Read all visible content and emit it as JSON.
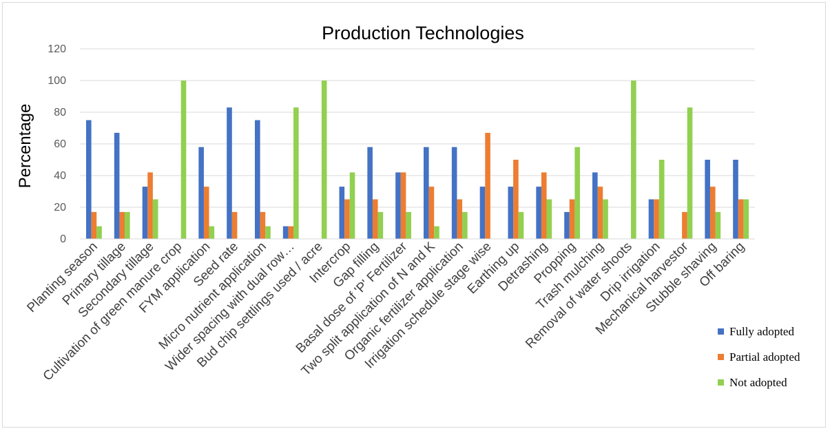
{
  "chart_data": {
    "type": "bar",
    "title": "Production Technologies",
    "xlabel": "",
    "ylabel": "Percentage",
    "ylim": [
      0,
      120
    ],
    "yticks": [
      0,
      20,
      40,
      60,
      80,
      100,
      120
    ],
    "grid": true,
    "legend_position": "right",
    "categories": [
      "Planting season",
      "Primary tillage",
      "Secondary tillage",
      "Cultivation of green manure crop",
      "FYM application",
      "Seed rate",
      "Micro nutrient application",
      "Wider spacing with dual row…",
      "Bud chip settlings used / acre",
      "Intercrop",
      "Gap filling",
      "Basal dose of 'P' Fertilizer",
      "Two split application of N and K",
      "Organic  fertilizer application",
      "Irrigation schedule stage wise",
      "Earthing up",
      "Detrashing",
      "Propping",
      "Trash mulching",
      "Removal of water shoots",
      "Drip irrigation",
      "Mechanical harvestor",
      "Stubble shaving",
      "Off baring"
    ],
    "series": [
      {
        "name": "Fully adopted",
        "color": "#4472c4",
        "values": [
          75,
          67,
          33,
          0,
          58,
          83,
          75,
          8,
          0,
          33,
          58,
          42,
          58,
          58,
          33,
          33,
          33,
          17,
          42,
          0,
          25,
          0,
          50,
          50
        ]
      },
      {
        "name": "Partial adopted",
        "color": "#ed7d31",
        "values": [
          17,
          17,
          42,
          0,
          33,
          17,
          17,
          8,
          0,
          25,
          25,
          42,
          33,
          25,
          67,
          50,
          42,
          25,
          33,
          0,
          25,
          17,
          33,
          25
        ]
      },
      {
        "name": "Not adopted",
        "color": "#92d050",
        "values": [
          8,
          17,
          25,
          100,
          8,
          0,
          8,
          83,
          100,
          42,
          17,
          17,
          8,
          17,
          0,
          17,
          25,
          58,
          25,
          100,
          50,
          83,
          17,
          25
        ]
      }
    ]
  }
}
